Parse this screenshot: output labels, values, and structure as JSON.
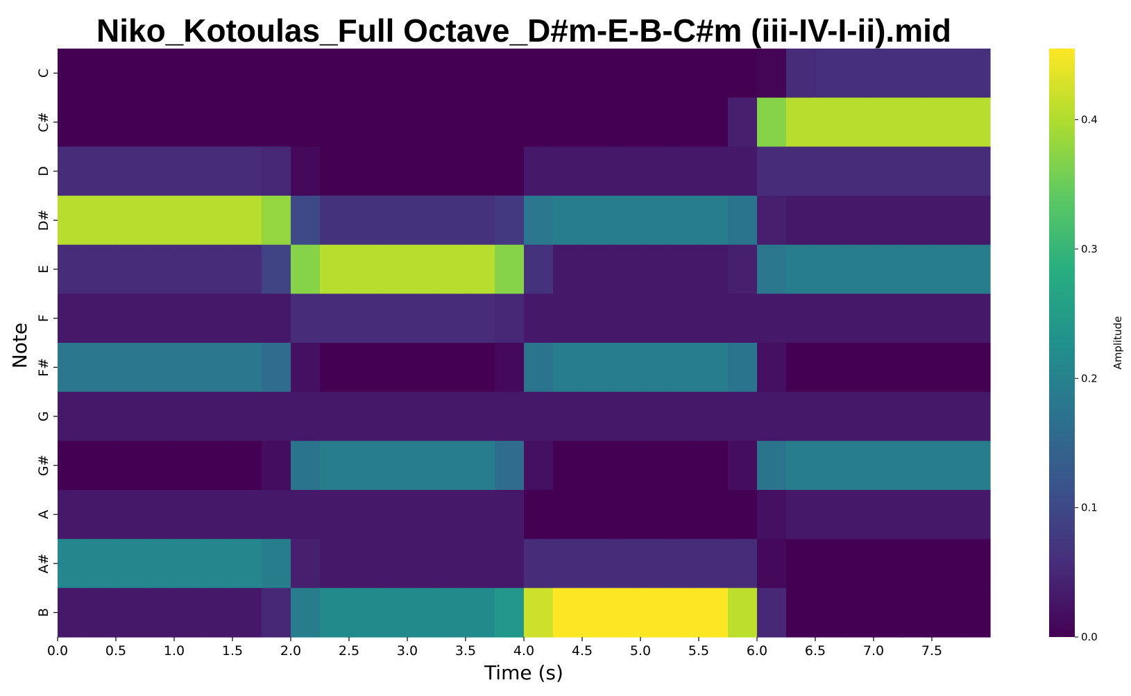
{
  "chart_data": {
    "type": "heatmap",
    "title": "Niko_Kotoulas_Full Octave_D#m-E-B-C#m (iii-IV-I-ii).mid",
    "xlabel": "Time (s)",
    "ylabel": "Note",
    "colorbar_label": "Amplitude",
    "colormap": "viridis",
    "vmin": 0.0,
    "vmax": 0.455,
    "xlim": [
      0.0,
      8.0
    ],
    "x_ticks": [
      "0.0",
      "0.5",
      "1.0",
      "1.5",
      "2.0",
      "2.5",
      "3.0",
      "3.5",
      "4.0",
      "4.5",
      "5.0",
      "5.5",
      "6.0",
      "6.5",
      "7.0",
      "7.5"
    ],
    "colorbar_ticks": [
      "0.0",
      "0.1",
      "0.2",
      "0.3",
      "0.4"
    ],
    "notes": [
      "C",
      "C#",
      "D",
      "D#",
      "E",
      "F",
      "F#",
      "G",
      "G#",
      "A",
      "A#",
      "B"
    ],
    "time_bins": [
      0.0,
      0.25,
      0.5,
      0.75,
      1.0,
      1.25,
      1.5,
      1.75,
      2.0,
      2.25,
      2.5,
      2.75,
      3.0,
      3.25,
      3.5,
      3.75,
      4.0,
      4.25,
      4.5,
      4.75,
      5.0,
      5.25,
      5.5,
      5.75,
      6.0,
      6.25,
      6.5,
      6.75,
      7.0,
      7.25,
      7.5,
      7.75
    ],
    "grid": false,
    "values": [
      [
        0.0,
        0.0,
        0.0,
        0.0,
        0.0,
        0.0,
        0.0,
        0.0,
        0.0,
        0.0,
        0.0,
        0.0,
        0.0,
        0.0,
        0.0,
        0.0,
        0.0,
        0.0,
        0.0,
        0.0,
        0.0,
        0.0,
        0.0,
        0.0,
        0.005,
        0.055,
        0.06,
        0.06,
        0.06,
        0.06,
        0.06,
        0.06
      ],
      [
        0.0,
        0.0,
        0.0,
        0.0,
        0.0,
        0.0,
        0.0,
        0.0,
        0.0,
        0.0,
        0.0,
        0.0,
        0.0,
        0.0,
        0.0,
        0.0,
        0.0,
        0.0,
        0.0,
        0.0,
        0.0,
        0.0,
        0.0,
        0.04,
        0.37,
        0.405,
        0.405,
        0.405,
        0.405,
        0.405,
        0.405,
        0.405
      ],
      [
        0.055,
        0.055,
        0.055,
        0.055,
        0.055,
        0.055,
        0.055,
        0.05,
        0.01,
        0.0,
        0.0,
        0.0,
        0.0,
        0.0,
        0.0,
        0.0,
        0.03,
        0.03,
        0.03,
        0.03,
        0.03,
        0.03,
        0.03,
        0.03,
        0.055,
        0.055,
        0.055,
        0.055,
        0.055,
        0.055,
        0.055,
        0.055
      ],
      [
        0.405,
        0.405,
        0.405,
        0.405,
        0.405,
        0.405,
        0.405,
        0.38,
        0.1,
        0.065,
        0.065,
        0.065,
        0.065,
        0.065,
        0.065,
        0.075,
        0.18,
        0.19,
        0.19,
        0.19,
        0.19,
        0.19,
        0.19,
        0.175,
        0.04,
        0.03,
        0.03,
        0.03,
        0.03,
        0.03,
        0.03,
        0.03
      ],
      [
        0.055,
        0.055,
        0.055,
        0.055,
        0.055,
        0.055,
        0.055,
        0.09,
        0.37,
        0.405,
        0.405,
        0.405,
        0.405,
        0.405,
        0.405,
        0.37,
        0.065,
        0.03,
        0.03,
        0.03,
        0.03,
        0.03,
        0.03,
        0.04,
        0.18,
        0.19,
        0.19,
        0.19,
        0.19,
        0.19,
        0.19,
        0.19
      ],
      [
        0.03,
        0.03,
        0.03,
        0.03,
        0.03,
        0.03,
        0.03,
        0.03,
        0.055,
        0.055,
        0.055,
        0.055,
        0.055,
        0.055,
        0.055,
        0.05,
        0.03,
        0.03,
        0.03,
        0.03,
        0.03,
        0.03,
        0.03,
        0.03,
        0.03,
        0.03,
        0.03,
        0.03,
        0.03,
        0.03,
        0.03,
        0.03
      ],
      [
        0.18,
        0.18,
        0.18,
        0.18,
        0.18,
        0.18,
        0.18,
        0.16,
        0.02,
        0.0,
        0.0,
        0.0,
        0.0,
        0.0,
        0.0,
        0.01,
        0.175,
        0.19,
        0.19,
        0.19,
        0.19,
        0.19,
        0.19,
        0.175,
        0.02,
        0.0,
        0.0,
        0.0,
        0.0,
        0.0,
        0.0,
        0.0
      ],
      [
        0.03,
        0.03,
        0.03,
        0.03,
        0.03,
        0.03,
        0.03,
        0.03,
        0.03,
        0.03,
        0.03,
        0.03,
        0.03,
        0.03,
        0.03,
        0.03,
        0.03,
        0.03,
        0.03,
        0.03,
        0.03,
        0.03,
        0.03,
        0.03,
        0.03,
        0.03,
        0.03,
        0.03,
        0.03,
        0.03,
        0.03,
        0.03
      ],
      [
        0.0,
        0.0,
        0.0,
        0.0,
        0.0,
        0.0,
        0.0,
        0.015,
        0.175,
        0.19,
        0.19,
        0.19,
        0.19,
        0.19,
        0.19,
        0.16,
        0.02,
        0.0,
        0.0,
        0.0,
        0.0,
        0.0,
        0.0,
        0.015,
        0.175,
        0.19,
        0.19,
        0.19,
        0.19,
        0.19,
        0.19,
        0.19
      ],
      [
        0.03,
        0.03,
        0.03,
        0.03,
        0.03,
        0.03,
        0.03,
        0.03,
        0.03,
        0.03,
        0.03,
        0.03,
        0.03,
        0.03,
        0.03,
        0.03,
        0.0,
        0.0,
        0.0,
        0.0,
        0.0,
        0.0,
        0.0,
        0.0,
        0.02,
        0.03,
        0.03,
        0.03,
        0.03,
        0.03,
        0.03,
        0.03
      ],
      [
        0.21,
        0.21,
        0.21,
        0.21,
        0.21,
        0.21,
        0.21,
        0.19,
        0.04,
        0.03,
        0.03,
        0.03,
        0.03,
        0.03,
        0.03,
        0.03,
        0.055,
        0.055,
        0.055,
        0.055,
        0.055,
        0.055,
        0.055,
        0.055,
        0.01,
        0.0,
        0.0,
        0.0,
        0.0,
        0.0,
        0.0,
        0.0
      ],
      [
        0.03,
        0.03,
        0.03,
        0.03,
        0.03,
        0.03,
        0.03,
        0.05,
        0.19,
        0.215,
        0.215,
        0.215,
        0.215,
        0.215,
        0.215,
        0.24,
        0.42,
        0.455,
        0.455,
        0.455,
        0.455,
        0.455,
        0.455,
        0.41,
        0.05,
        0.0,
        0.0,
        0.0,
        0.0,
        0.0,
        0.0,
        0.0
      ]
    ]
  }
}
